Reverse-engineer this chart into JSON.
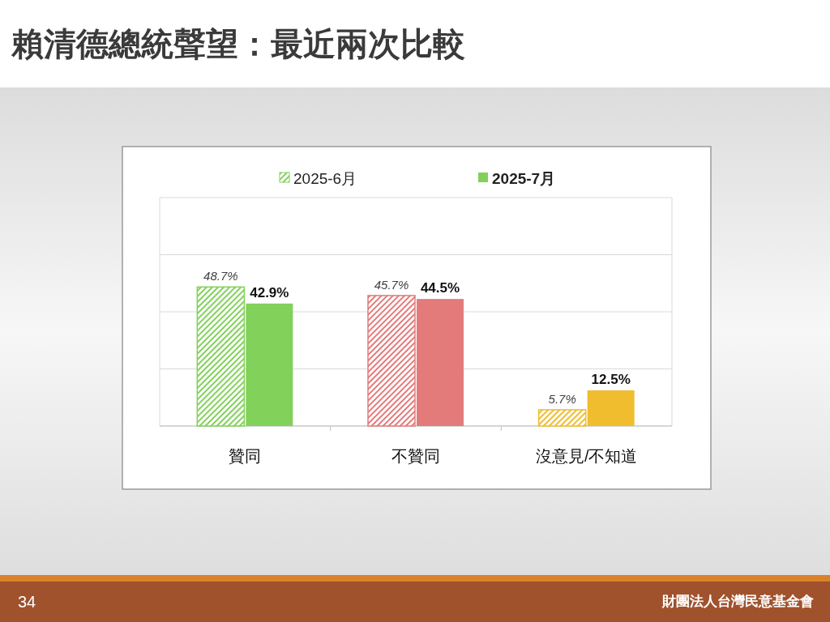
{
  "chart_data": {
    "type": "bar",
    "title": "賴清德總統聲望：最近兩次比較",
    "categories": [
      "贊同",
      "不贊同",
      "沒意見/不知道"
    ],
    "series": [
      {
        "name": "2025-6月",
        "color": "#82d15a",
        "colors": [
          "#82d15a",
          "#e37b7b",
          "#f0bd2e"
        ],
        "values": [
          48.7,
          45.7,
          5.7
        ],
        "value_labels": [
          "48.7%",
          "45.7%",
          "5.7%"
        ]
      },
      {
        "name": "2025-7月",
        "color": "#82d15a",
        "colors": [
          "#82d15a",
          "#e37b7b",
          "#f0bd2e"
        ],
        "values": [
          42.9,
          44.5,
          12.5
        ],
        "value_labels": [
          "42.9%",
          "44.5%",
          "12.5%"
        ]
      }
    ],
    "ylim": [
      0,
      80
    ],
    "yticks": [
      {
        "value": 0,
        "label": null
      },
      {
        "value": 20,
        "label": null
      },
      {
        "value": 40,
        "label": null
      },
      {
        "value": 60,
        "label": null
      },
      {
        "value": 80,
        "label": null
      }
    ],
    "grid": "y",
    "legend": "top",
    "tick_labels": "x",
    "annotations": [
      "34",
      "財團法人台灣民意基金會"
    ]
  }
}
